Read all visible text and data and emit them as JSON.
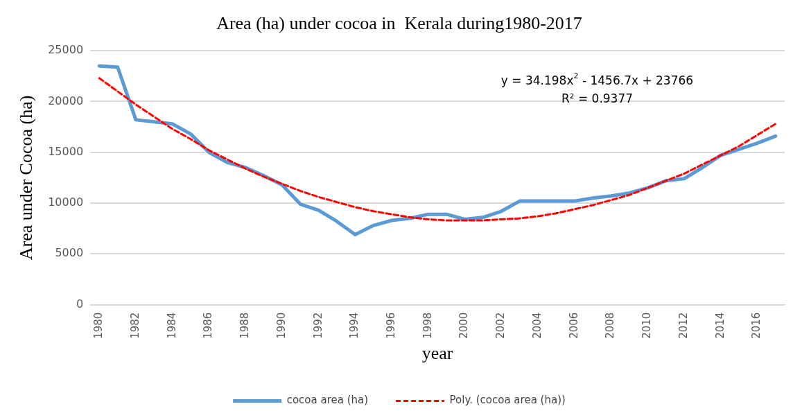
{
  "chart_data": {
    "type": "line",
    "title": "Area (ha) under cocoa in  Kerala during1980-2017",
    "xlabel": "year",
    "ylabel": "Area under Cocoa (ha)",
    "categories": [
      "1980",
      null,
      "1982",
      null,
      "1984",
      null,
      "1986",
      null,
      "1988",
      null,
      "1990",
      null,
      "1992",
      null,
      "1994",
      null,
      "1996",
      null,
      "1998",
      null,
      "2000",
      null,
      "2002",
      null,
      "2004",
      null,
      "2006",
      null,
      "2008",
      null,
      "2010",
      null,
      "2012",
      null,
      "2014",
      null,
      "2016",
      null
    ],
    "series": [
      {
        "name": "cocoa area (ha)",
        "color": "#5b9bd5",
        "line_style": "solid",
        "values": [
          23500,
          23400,
          18200,
          18000,
          17800,
          16800,
          15000,
          14000,
          13500,
          12700,
          11800,
          9900,
          9300,
          8200,
          6900,
          7800,
          8300,
          8500,
          8900,
          8900,
          8400,
          8600,
          9200,
          10200,
          10200,
          10200,
          10200,
          10500,
          10700,
          11000,
          11500,
          12200,
          12400,
          13500,
          14700,
          15300,
          15900,
          16600
        ]
      },
      {
        "name": "Poly. (cocoa area (ha))",
        "color": "#ff0000",
        "line_style": "dashed",
        "values": [
          22300,
          21000,
          19700,
          18500,
          17300,
          16300,
          15200,
          14300,
          13400,
          12600,
          11900,
          11200,
          10600,
          10100,
          9600,
          9200,
          8900,
          8600,
          8400,
          8300,
          8300,
          8300,
          8400,
          8500,
          8700,
          9000,
          9400,
          9800,
          10300,
          10800,
          11500,
          12200,
          12900,
          13800,
          14700,
          15600,
          16700,
          17800
        ]
      }
    ],
    "ylim": [
      0,
      25000
    ],
    "yticks": [
      0,
      5000,
      10000,
      15000,
      20000,
      25000
    ],
    "grid": "y",
    "legend": "bottom",
    "marker": "none",
    "annotations": [
      "y = 34.198x$^{2}$ - 1456.7x + 23766",
      "R² = 0.9377"
    ]
  }
}
